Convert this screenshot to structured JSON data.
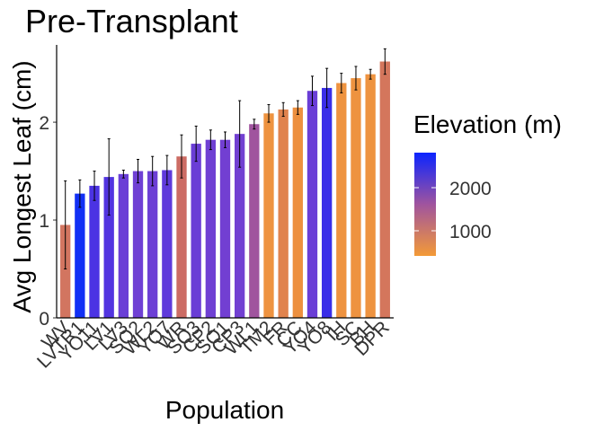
{
  "chart_data": {
    "type": "bar",
    "title": "Pre-Transplant",
    "x_label": "Population",
    "y_label": "Avg Longest Leaf (cm)",
    "categories": [
      "WV",
      "LVTR1",
      "YO11",
      "LV1",
      "LV3",
      "SQ2",
      "WL2",
      "YO7",
      "WR",
      "SQ3",
      "CP2",
      "SQ1",
      "CP3",
      "WL1",
      "TM2",
      "FR",
      "CC",
      "YO4",
      "YO8",
      "IH",
      "SC",
      "BH",
      "DPR"
    ],
    "values": [
      0.95,
      1.27,
      1.35,
      1.44,
      1.47,
      1.5,
      1.5,
      1.51,
      1.65,
      1.78,
      1.82,
      1.82,
      1.88,
      1.98,
      2.09,
      2.13,
      2.15,
      2.32,
      2.35,
      2.4,
      2.45,
      2.49,
      2.62
    ],
    "errors": [
      0.45,
      0.14,
      0.15,
      0.39,
      0.04,
      0.12,
      0.15,
      0.15,
      0.22,
      0.18,
      0.1,
      0.08,
      0.34,
      0.05,
      0.09,
      0.07,
      0.07,
      0.15,
      0.2,
      0.1,
      0.12,
      0.05,
      0.13
    ],
    "colors": [
      "#d27560",
      "#1230f5",
      "#4b33e3",
      "#5234e0",
      "#6a3fd6",
      "#6f40d4",
      "#6c3fd5",
      "#5f3adb",
      "#cc6c64",
      "#6a3ed6",
      "#6f40d3",
      "#723fd2",
      "#7240d2",
      "#a0549e",
      "#ee9340",
      "#e0834e",
      "#ed903f",
      "#6a3ed6",
      "#3a2ee8",
      "#ee9340",
      "#ee9340",
      "#ee9340",
      "#d4765c"
    ],
    "ylim": [
      0,
      2.79
    ],
    "yticks": [
      0,
      1,
      2
    ],
    "legend": {
      "title": "Elevation (m)",
      "lim": [
        417,
        2812
      ],
      "ticks": [
        1000,
        2000
      ],
      "low_color": "#f39a37",
      "high_color": "#0b24ff",
      "position": "right"
    }
  }
}
